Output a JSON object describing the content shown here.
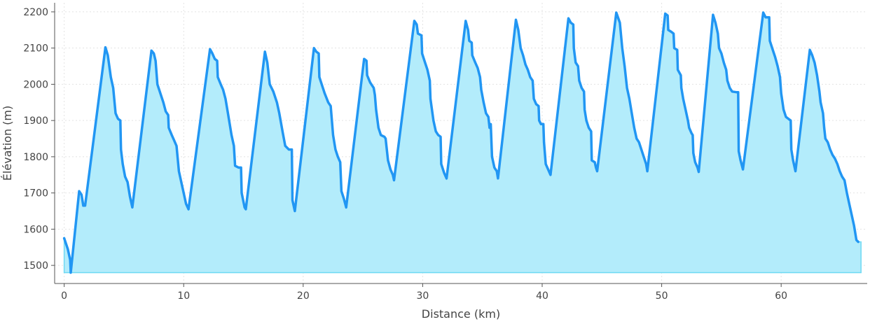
{
  "chart_data": {
    "type": "area",
    "title": "",
    "xlabel": "Distance (km)",
    "ylabel": "Élévation (m)",
    "xlim": [
      -0.8,
      67.2
    ],
    "ylim": [
      1450,
      2225
    ],
    "baseline": 1480,
    "xticks": [
      0,
      10,
      20,
      30,
      40,
      50,
      60
    ],
    "yticks": [
      1500,
      1600,
      1700,
      1800,
      1900,
      2000,
      2100,
      2200
    ],
    "grid": true,
    "legend": "none",
    "series": [
      {
        "color": "#2196f3",
        "fill": "#b3ecfb",
        "fill_edge": "#6fd9f3",
        "points": [
          [
            0.0,
            1575
          ],
          [
            0.3,
            1545
          ],
          [
            0.5,
            1515
          ],
          [
            0.55,
            1480
          ],
          [
            1.25,
            1705
          ],
          [
            1.45,
            1695
          ],
          [
            1.6,
            1665
          ],
          [
            1.75,
            1665
          ],
          [
            3.45,
            2102
          ],
          [
            3.65,
            2080
          ],
          [
            3.9,
            2020
          ],
          [
            4.1,
            1990
          ],
          [
            4.3,
            1920
          ],
          [
            4.5,
            1905
          ],
          [
            4.7,
            1900
          ],
          [
            4.75,
            1820
          ],
          [
            4.9,
            1780
          ],
          [
            5.1,
            1745
          ],
          [
            5.3,
            1730
          ],
          [
            5.5,
            1690
          ],
          [
            5.7,
            1660
          ],
          [
            7.3,
            2093
          ],
          [
            7.5,
            2085
          ],
          [
            7.65,
            2065
          ],
          [
            7.8,
            2000
          ],
          [
            8.0,
            1980
          ],
          [
            8.3,
            1950
          ],
          [
            8.5,
            1925
          ],
          [
            8.7,
            1915
          ],
          [
            8.75,
            1880
          ],
          [
            9.0,
            1860
          ],
          [
            9.2,
            1845
          ],
          [
            9.4,
            1830
          ],
          [
            9.6,
            1760
          ],
          [
            9.8,
            1730
          ],
          [
            10.0,
            1700
          ],
          [
            10.2,
            1670
          ],
          [
            10.4,
            1655
          ],
          [
            12.2,
            2097
          ],
          [
            12.4,
            2085
          ],
          [
            12.6,
            2070
          ],
          [
            12.8,
            2065
          ],
          [
            12.85,
            2020
          ],
          [
            13.1,
            2000
          ],
          [
            13.3,
            1985
          ],
          [
            13.5,
            1960
          ],
          [
            13.7,
            1920
          ],
          [
            13.9,
            1880
          ],
          [
            14.0,
            1860
          ],
          [
            14.2,
            1830
          ],
          [
            14.3,
            1775
          ],
          [
            14.6,
            1770
          ],
          [
            14.8,
            1770
          ],
          [
            14.85,
            1700
          ],
          [
            15.1,
            1660
          ],
          [
            15.2,
            1655
          ],
          [
            16.8,
            2090
          ],
          [
            17.0,
            2060
          ],
          [
            17.2,
            2000
          ],
          [
            17.5,
            1980
          ],
          [
            17.8,
            1950
          ],
          [
            18.0,
            1920
          ],
          [
            18.3,
            1865
          ],
          [
            18.5,
            1830
          ],
          [
            18.8,
            1820
          ],
          [
            19.05,
            1820
          ],
          [
            19.1,
            1680
          ],
          [
            19.3,
            1650
          ],
          [
            20.9,
            2100
          ],
          [
            21.1,
            2090
          ],
          [
            21.3,
            2085
          ],
          [
            21.35,
            2020
          ],
          [
            21.6,
            1995
          ],
          [
            21.8,
            1975
          ],
          [
            22.1,
            1950
          ],
          [
            22.3,
            1940
          ],
          [
            22.5,
            1860
          ],
          [
            22.7,
            1820
          ],
          [
            22.9,
            1800
          ],
          [
            23.1,
            1785
          ],
          [
            23.2,
            1705
          ],
          [
            23.4,
            1685
          ],
          [
            23.6,
            1660
          ],
          [
            25.1,
            2070
          ],
          [
            25.3,
            2065
          ],
          [
            25.35,
            2025
          ],
          [
            25.6,
            2005
          ],
          [
            25.9,
            1990
          ],
          [
            26.0,
            1970
          ],
          [
            26.1,
            1930
          ],
          [
            26.3,
            1880
          ],
          [
            26.5,
            1860
          ],
          [
            26.8,
            1855
          ],
          [
            26.9,
            1850
          ],
          [
            27.1,
            1790
          ],
          [
            27.3,
            1765
          ],
          [
            27.5,
            1750
          ],
          [
            27.6,
            1735
          ],
          [
            29.3,
            2175
          ],
          [
            29.5,
            2165
          ],
          [
            29.6,
            2140
          ],
          [
            29.9,
            2135
          ],
          [
            29.95,
            2085
          ],
          [
            30.2,
            2060
          ],
          [
            30.4,
            2040
          ],
          [
            30.6,
            2010
          ],
          [
            30.65,
            1960
          ],
          [
            30.9,
            1900
          ],
          [
            31.1,
            1870
          ],
          [
            31.3,
            1860
          ],
          [
            31.5,
            1855
          ],
          [
            31.55,
            1780
          ],
          [
            31.8,
            1755
          ],
          [
            32.0,
            1740
          ],
          [
            33.6,
            2175
          ],
          [
            33.8,
            2150
          ],
          [
            33.9,
            2120
          ],
          [
            34.1,
            2115
          ],
          [
            34.15,
            2080
          ],
          [
            34.4,
            2060
          ],
          [
            34.6,
            2045
          ],
          [
            34.8,
            2020
          ],
          [
            34.9,
            1985
          ],
          [
            35.1,
            1950
          ],
          [
            35.3,
            1920
          ],
          [
            35.5,
            1910
          ],
          [
            35.6,
            1880
          ],
          [
            35.7,
            1890
          ],
          [
            35.8,
            1800
          ],
          [
            36.0,
            1770
          ],
          [
            36.2,
            1760
          ],
          [
            36.3,
            1740
          ],
          [
            37.8,
            2178
          ],
          [
            38.0,
            2150
          ],
          [
            38.2,
            2100
          ],
          [
            38.4,
            2080
          ],
          [
            38.6,
            2055
          ],
          [
            38.8,
            2040
          ],
          [
            39.0,
            2020
          ],
          [
            39.2,
            2010
          ],
          [
            39.3,
            1960
          ],
          [
            39.5,
            1945
          ],
          [
            39.7,
            1940
          ],
          [
            39.75,
            1900
          ],
          [
            39.9,
            1890
          ],
          [
            40.1,
            1890
          ],
          [
            40.15,
            1840
          ],
          [
            40.3,
            1780
          ],
          [
            40.5,
            1765
          ],
          [
            40.7,
            1750
          ],
          [
            42.2,
            2182
          ],
          [
            42.4,
            2170
          ],
          [
            42.6,
            2165
          ],
          [
            42.65,
            2100
          ],
          [
            42.8,
            2060
          ],
          [
            43.0,
            2050
          ],
          [
            43.1,
            2010
          ],
          [
            43.3,
            1990
          ],
          [
            43.5,
            1980
          ],
          [
            43.55,
            1930
          ],
          [
            43.7,
            1900
          ],
          [
            43.9,
            1880
          ],
          [
            44.1,
            1870
          ],
          [
            44.15,
            1790
          ],
          [
            44.4,
            1785
          ],
          [
            44.5,
            1770
          ],
          [
            44.6,
            1760
          ],
          [
            46.2,
            2198
          ],
          [
            46.5,
            2170
          ],
          [
            46.7,
            2100
          ],
          [
            46.9,
            2050
          ],
          [
            47.1,
            1990
          ],
          [
            47.3,
            1960
          ],
          [
            47.5,
            1920
          ],
          [
            47.7,
            1880
          ],
          [
            47.9,
            1850
          ],
          [
            48.1,
            1840
          ],
          [
            48.3,
            1820
          ],
          [
            48.5,
            1800
          ],
          [
            48.7,
            1780
          ],
          [
            48.8,
            1760
          ],
          [
            50.3,
            2195
          ],
          [
            50.5,
            2190
          ],
          [
            50.55,
            2150
          ],
          [
            50.8,
            2145
          ],
          [
            51.0,
            2140
          ],
          [
            51.05,
            2100
          ],
          [
            51.3,
            2095
          ],
          [
            51.35,
            2040
          ],
          [
            51.6,
            2025
          ],
          [
            51.65,
            1990
          ],
          [
            51.8,
            1960
          ],
          [
            52.0,
            1930
          ],
          [
            52.2,
            1900
          ],
          [
            52.3,
            1880
          ],
          [
            52.5,
            1865
          ],
          [
            52.6,
            1860
          ],
          [
            52.65,
            1810
          ],
          [
            52.8,
            1785
          ],
          [
            53.0,
            1770
          ],
          [
            53.1,
            1758
          ],
          [
            54.3,
            2192
          ],
          [
            54.5,
            2170
          ],
          [
            54.7,
            2140
          ],
          [
            54.8,
            2100
          ],
          [
            55.0,
            2085
          ],
          [
            55.2,
            2060
          ],
          [
            55.4,
            2040
          ],
          [
            55.5,
            2010
          ],
          [
            55.7,
            1990
          ],
          [
            55.9,
            1980
          ],
          [
            56.3,
            1978
          ],
          [
            56.4,
            1978
          ],
          [
            56.45,
            1815
          ],
          [
            56.6,
            1790
          ],
          [
            56.8,
            1765
          ],
          [
            58.5,
            2198
          ],
          [
            58.7,
            2185
          ],
          [
            59.0,
            2185
          ],
          [
            59.05,
            2120
          ],
          [
            59.3,
            2095
          ],
          [
            59.5,
            2075
          ],
          [
            59.7,
            2050
          ],
          [
            59.9,
            2020
          ],
          [
            60.0,
            1975
          ],
          [
            60.2,
            1930
          ],
          [
            60.4,
            1910
          ],
          [
            60.6,
            1905
          ],
          [
            60.8,
            1900
          ],
          [
            60.85,
            1820
          ],
          [
            61.0,
            1790
          ],
          [
            61.2,
            1760
          ],
          [
            62.4,
            2095
          ],
          [
            62.6,
            2080
          ],
          [
            62.8,
            2060
          ],
          [
            63.0,
            2025
          ],
          [
            63.2,
            1980
          ],
          [
            63.3,
            1950
          ],
          [
            63.5,
            1920
          ],
          [
            63.6,
            1880
          ],
          [
            63.7,
            1850
          ],
          [
            63.9,
            1840
          ],
          [
            64.1,
            1820
          ],
          [
            64.3,
            1805
          ],
          [
            64.5,
            1795
          ],
          [
            64.7,
            1780
          ],
          [
            64.9,
            1760
          ],
          [
            65.1,
            1745
          ],
          [
            65.3,
            1735
          ],
          [
            65.5,
            1700
          ],
          [
            65.7,
            1670
          ],
          [
            65.9,
            1640
          ],
          [
            66.1,
            1610
          ],
          [
            66.3,
            1570
          ],
          [
            66.45,
            1565
          ]
        ]
      }
    ]
  }
}
